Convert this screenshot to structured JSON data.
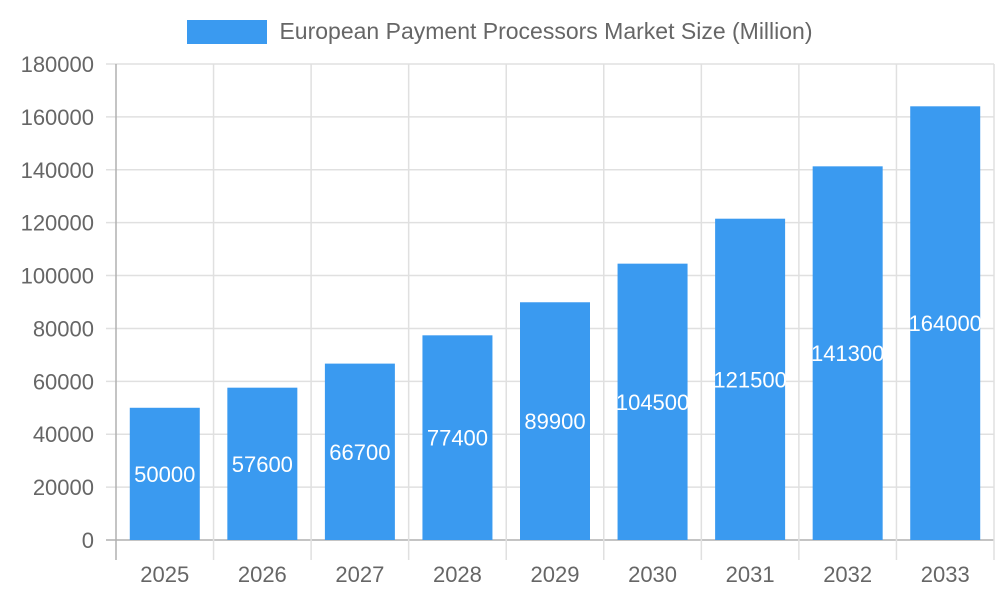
{
  "chart_data": {
    "type": "bar",
    "title": "",
    "xlabel": "",
    "ylabel": "",
    "categories": [
      "2025",
      "2026",
      "2027",
      "2028",
      "2029",
      "2030",
      "2031",
      "2032",
      "2033"
    ],
    "series": [
      {
        "name": "European Payment Processors Market Size (Million)",
        "values": [
          50000,
          57600,
          66700,
          77400,
          89900,
          104500,
          121500,
          141300,
          164000
        ],
        "color": "#3a9af0"
      }
    ],
    "ylim": [
      0,
      180000
    ],
    "yticks": [
      0,
      20000,
      40000,
      60000,
      80000,
      100000,
      120000,
      140000,
      160000,
      180000
    ],
    "grid": true,
    "legend_position": "top",
    "data_labels": true
  },
  "legend": {
    "label": "European Payment Processors Market Size (Million)",
    "color": "#3a9af0"
  },
  "colors": {
    "bar": "#3a9af0",
    "grid": "#e0e0e0",
    "axis": "#b0b0b0",
    "tick_text": "#666666",
    "data_label": "#ffffff"
  }
}
